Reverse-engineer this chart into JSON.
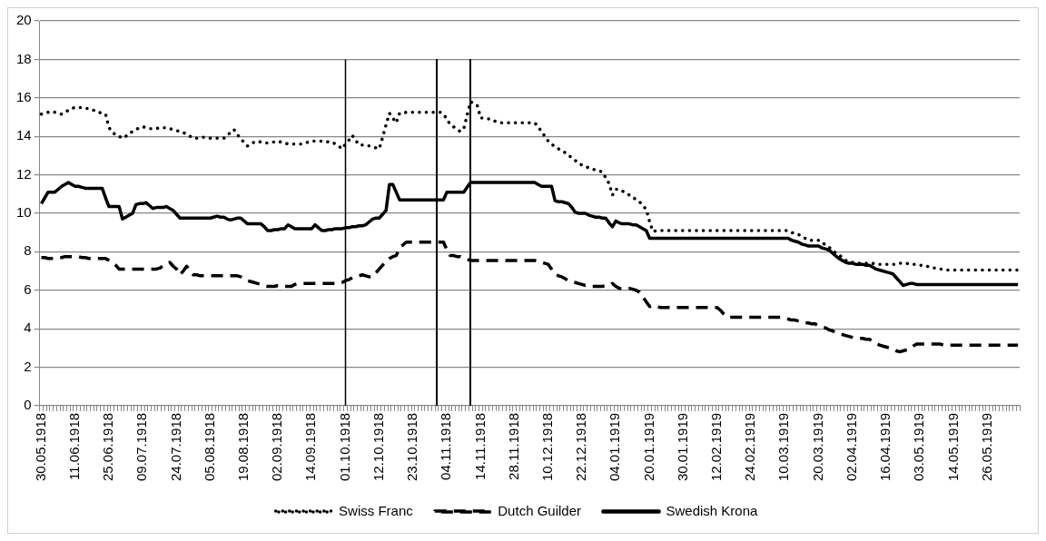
{
  "chart_data": {
    "type": "line",
    "categories": [
      "30.05.1918",
      null,
      null,
      null,
      null,
      null,
      null,
      null,
      null,
      null,
      "11.06.1918",
      null,
      null,
      null,
      null,
      null,
      null,
      null,
      null,
      null,
      "25.06.1918",
      null,
      null,
      null,
      null,
      null,
      null,
      null,
      null,
      null,
      "09.07.1918",
      null,
      null,
      null,
      null,
      null,
      null,
      null,
      null,
      null,
      "24.07.1918",
      null,
      null,
      null,
      null,
      null,
      null,
      null,
      null,
      null,
      "05.08.1918",
      null,
      null,
      null,
      null,
      null,
      null,
      null,
      null,
      null,
      "19.08.1918",
      null,
      null,
      null,
      null,
      null,
      null,
      null,
      null,
      null,
      "02.09.1918",
      null,
      null,
      null,
      null,
      null,
      null,
      null,
      null,
      null,
      "14.09.1918",
      null,
      null,
      null,
      null,
      null,
      null,
      null,
      null,
      null,
      "01.10.1918",
      null,
      null,
      null,
      null,
      null,
      null,
      null,
      null,
      null,
      "12.10.1918",
      null,
      null,
      null,
      null,
      null,
      null,
      null,
      null,
      null,
      "23.10.1918",
      null,
      null,
      null,
      null,
      null,
      null,
      null,
      null,
      null,
      "04.11.1918",
      null,
      null,
      null,
      null,
      null,
      null,
      null,
      null,
      null,
      "14.11.1918",
      null,
      null,
      null,
      null,
      null,
      null,
      null,
      null,
      null,
      "28.11.1918",
      null,
      null,
      null,
      null,
      null,
      null,
      null,
      null,
      null,
      "10.12.1918",
      null,
      null,
      null,
      null,
      null,
      null,
      null,
      null,
      null,
      "22.12.1918",
      null,
      null,
      null,
      null,
      null,
      null,
      null,
      null,
      null,
      "04.01.1919",
      null,
      null,
      null,
      null,
      null,
      null,
      null,
      null,
      null,
      "20.01.1919",
      null,
      null,
      null,
      null,
      null,
      null,
      null,
      null,
      null,
      "30.01.1919",
      null,
      null,
      null,
      null,
      null,
      null,
      null,
      null,
      null,
      "12.02.1919",
      null,
      null,
      null,
      null,
      null,
      null,
      null,
      null,
      null,
      "24.02.1919",
      null,
      null,
      null,
      null,
      null,
      null,
      null,
      null,
      null,
      "10.03.1919",
      null,
      null,
      null,
      null,
      null,
      null,
      null,
      null,
      null,
      "20.03.1919",
      null,
      null,
      null,
      null,
      null,
      null,
      null,
      null,
      null,
      "02.04.1919",
      null,
      null,
      null,
      null,
      null,
      null,
      null,
      null,
      null,
      "16.04.1919",
      null,
      null,
      null,
      null,
      null,
      null,
      null,
      null,
      null,
      "03.05.1919",
      null,
      null,
      null,
      null,
      null,
      null,
      null,
      null,
      null,
      "14.05.1919",
      null,
      null,
      null,
      null,
      null,
      null,
      null,
      null,
      null,
      "26.05.1919",
      null,
      null,
      null,
      null,
      null,
      null,
      null,
      null,
      null
    ],
    "series": [
      {
        "name": "Swiss Franc",
        "color": "#000000",
        "line_style": "dotted",
        "values": [
          15.15,
          15.2,
          15.25,
          15.3,
          15.25,
          15.2,
          15.15,
          15.25,
          15.35,
          15.45,
          15.5,
          15.5,
          15.5,
          15.45,
          15.45,
          15.4,
          15.3,
          15.25,
          15.2,
          15.15,
          14.45,
          14.25,
          14.05,
          14.0,
          13.9,
          14.0,
          14.15,
          14.25,
          14.35,
          14.45,
          14.5,
          14.45,
          14.4,
          14.4,
          14.4,
          14.45,
          14.45,
          14.45,
          14.4,
          14.35,
          14.3,
          14.25,
          14.2,
          14.1,
          14.0,
          13.9,
          13.9,
          13.95,
          13.95,
          13.95,
          13.9,
          13.9,
          13.9,
          13.9,
          13.9,
          14.05,
          14.2,
          14.35,
          14.1,
          13.85,
          13.7,
          13.5,
          13.6,
          13.7,
          13.75,
          13.7,
          13.65,
          13.65,
          13.7,
          13.7,
          13.75,
          13.7,
          13.65,
          13.6,
          13.6,
          13.6,
          13.6,
          13.6,
          13.65,
          13.7,
          13.75,
          13.75,
          13.75,
          13.75,
          13.75,
          13.7,
          13.7,
          13.6,
          13.5,
          13.35,
          13.6,
          13.8,
          14.05,
          13.8,
          13.55,
          13.55,
          13.5,
          13.5,
          13.45,
          13.4,
          13.35,
          13.95,
          14.6,
          15.2,
          14.95,
          14.7,
          15.2,
          15.2,
          15.25,
          15.25,
          15.25,
          15.25,
          15.25,
          15.25,
          15.25,
          15.25,
          15.25,
          15.25,
          15.25,
          15.15,
          14.9,
          14.6,
          14.5,
          14.35,
          14.25,
          14.4,
          15.1,
          15.8,
          15.7,
          15.6,
          14.95,
          14.95,
          14.9,
          14.9,
          14.8,
          14.75,
          14.7,
          14.7,
          14.7,
          14.7,
          14.7,
          14.7,
          14.7,
          14.7,
          14.7,
          14.7,
          14.7,
          14.5,
          14.25,
          14.0,
          13.75,
          13.6,
          13.45,
          13.35,
          13.25,
          13.15,
          13.0,
          12.9,
          12.75,
          12.6,
          12.5,
          12.45,
          12.35,
          12.3,
          12.25,
          12.2,
          12.15,
          11.85,
          11.55,
          10.95,
          11.25,
          11.25,
          11.15,
          11.05,
          10.95,
          10.85,
          10.7,
          10.6,
          10.4,
          10.2,
          9.55,
          9.05,
          9.1,
          9.1,
          9.1,
          9.1,
          9.1,
          9.1,
          9.1,
          9.1,
          9.1,
          9.1,
          9.1,
          9.1,
          9.1,
          9.1,
          9.1,
          9.1,
          9.1,
          9.1,
          9.1,
          9.1,
          9.1,
          9.1,
          9.1,
          9.1,
          9.1,
          9.1,
          9.1,
          9.1,
          9.1,
          9.1,
          9.1,
          9.1,
          9.1,
          9.1,
          9.1,
          9.1,
          9.1,
          9.1,
          9.1,
          9.1,
          9.0,
          8.95,
          8.9,
          8.8,
          8.7,
          8.6,
          8.6,
          8.6,
          8.6,
          8.5,
          8.35,
          8.25,
          8.1,
          7.95,
          7.85,
          7.7,
          7.55,
          7.5,
          7.45,
          7.4,
          7.4,
          7.4,
          7.4,
          7.4,
          7.4,
          7.35,
          7.35,
          7.35,
          7.35,
          7.35,
          7.35,
          7.35,
          7.4,
          7.4,
          7.4,
          7.35,
          7.35,
          7.35,
          7.3,
          7.3,
          7.25,
          7.2,
          7.15,
          7.15,
          7.1,
          7.1,
          7.05,
          7.05,
          7.05,
          7.05,
          7.05,
          7.05,
          7.05,
          7.05,
          7.05,
          7.05,
          7.05,
          7.05,
          7.05,
          7.05,
          7.05,
          7.05,
          7.05,
          7.05,
          7.05,
          7.05,
          7.05,
          7.05
        ]
      },
      {
        "name": "Dutch Guilder",
        "color": "#000000",
        "line_style": "dashed",
        "values": [
          7.7,
          7.7,
          7.65,
          7.65,
          7.65,
          7.7,
          7.7,
          7.75,
          7.75,
          7.75,
          7.75,
          7.75,
          7.7,
          7.7,
          7.65,
          7.65,
          7.65,
          7.65,
          7.65,
          7.65,
          7.55,
          7.45,
          7.3,
          7.1,
          7.1,
          7.1,
          7.1,
          7.1,
          7.1,
          7.1,
          7.1,
          7.1,
          7.1,
          7.1,
          7.1,
          7.15,
          7.25,
          7.35,
          7.45,
          7.25,
          7.1,
          6.8,
          7.0,
          7.25,
          7.0,
          6.8,
          6.8,
          6.75,
          6.75,
          6.75,
          6.75,
          6.75,
          6.75,
          6.75,
          6.75,
          6.75,
          6.75,
          6.75,
          6.75,
          6.7,
          6.6,
          6.5,
          6.45,
          6.4,
          6.35,
          6.3,
          6.25,
          6.2,
          6.2,
          6.2,
          6.25,
          6.25,
          6.2,
          6.2,
          6.2,
          6.3,
          6.35,
          6.35,
          6.35,
          6.35,
          6.35,
          6.35,
          6.35,
          6.35,
          6.35,
          6.35,
          6.35,
          6.35,
          6.35,
          6.4,
          6.5,
          6.55,
          6.65,
          6.7,
          6.75,
          6.8,
          6.75,
          6.7,
          6.7,
          6.9,
          7.1,
          7.3,
          7.5,
          7.65,
          7.75,
          7.8,
          8.2,
          8.35,
          8.5,
          8.5,
          8.5,
          8.5,
          8.5,
          8.5,
          8.5,
          8.5,
          8.5,
          8.5,
          8.5,
          8.5,
          8.1,
          7.8,
          7.8,
          7.75,
          7.75,
          7.65,
          7.6,
          7.55,
          7.55,
          7.55,
          7.55,
          7.55,
          7.55,
          7.55,
          7.55,
          7.55,
          7.55,
          7.55,
          7.55,
          7.55,
          7.55,
          7.55,
          7.55,
          7.55,
          7.55,
          7.55,
          7.55,
          7.5,
          7.45,
          7.4,
          7.35,
          7.1,
          6.85,
          6.75,
          6.7,
          6.6,
          6.5,
          6.45,
          6.4,
          6.35,
          6.3,
          6.25,
          6.25,
          6.2,
          6.2,
          6.2,
          6.2,
          6.25,
          6.25,
          6.35,
          6.2,
          6.1,
          6.1,
          6.1,
          6.1,
          6.05,
          6.0,
          5.9,
          5.65,
          5.4,
          5.15,
          5.2,
          5.2,
          5.1,
          5.1,
          5.1,
          5.1,
          5.1,
          5.1,
          5.1,
          5.1,
          5.1,
          5.1,
          5.1,
          5.1,
          5.1,
          5.1,
          5.1,
          5.1,
          5.1,
          5.1,
          4.95,
          4.75,
          4.6,
          4.6,
          4.6,
          4.6,
          4.6,
          4.6,
          4.6,
          4.6,
          4.6,
          4.6,
          4.6,
          4.6,
          4.6,
          4.6,
          4.6,
          4.6,
          4.6,
          4.55,
          4.5,
          4.45,
          4.45,
          4.4,
          4.35,
          4.3,
          4.3,
          4.25,
          4.25,
          4.15,
          4.1,
          4.05,
          3.95,
          3.9,
          3.8,
          3.75,
          3.7,
          3.65,
          3.6,
          3.55,
          3.5,
          3.5,
          3.5,
          3.45,
          3.45,
          3.35,
          3.25,
          3.15,
          3.1,
          3.05,
          3.0,
          2.95,
          2.85,
          2.8,
          2.85,
          2.9,
          2.95,
          3.1,
          3.2,
          3.2,
          3.2,
          3.2,
          3.2,
          3.2,
          3.2,
          3.2,
          3.15,
          3.15,
          3.15,
          3.15,
          3.15,
          3.15,
          3.15,
          3.15,
          3.15,
          3.15,
          3.15,
          3.15,
          3.15,
          3.15,
          3.15,
          3.15,
          3.15,
          3.15,
          3.15,
          3.15,
          3.15,
          3.15,
          3.15
        ]
      },
      {
        "name": "Swedish Krona",
        "color": "#000000",
        "line_style": "solid",
        "values": [
          10.5,
          10.8,
          11.1,
          11.1,
          11.1,
          11.25,
          11.4,
          11.5,
          11.6,
          11.5,
          11.4,
          11.4,
          11.35,
          11.3,
          11.3,
          11.3,
          11.3,
          11.3,
          11.3,
          10.8,
          10.35,
          10.35,
          10.35,
          10.35,
          9.7,
          9.8,
          9.9,
          10.0,
          10.45,
          10.5,
          10.5,
          10.55,
          10.4,
          10.25,
          10.3,
          10.3,
          10.3,
          10.35,
          10.25,
          10.15,
          9.95,
          9.75,
          9.75,
          9.75,
          9.75,
          9.75,
          9.75,
          9.75,
          9.75,
          9.75,
          9.75,
          9.8,
          9.85,
          9.8,
          9.8,
          9.7,
          9.65,
          9.7,
          9.75,
          9.75,
          9.6,
          9.45,
          9.45,
          9.45,
          9.45,
          9.45,
          9.3,
          9.1,
          9.1,
          9.15,
          9.15,
          9.2,
          9.2,
          9.4,
          9.3,
          9.2,
          9.2,
          9.2,
          9.2,
          9.2,
          9.2,
          9.4,
          9.25,
          9.1,
          9.1,
          9.15,
          9.15,
          9.2,
          9.2,
          9.2,
          9.25,
          9.25,
          9.3,
          9.3,
          9.35,
          9.35,
          9.4,
          9.55,
          9.7,
          9.75,
          9.75,
          9.95,
          10.15,
          11.5,
          11.5,
          11.1,
          10.7,
          10.7,
          10.7,
          10.7,
          10.7,
          10.7,
          10.7,
          10.7,
          10.7,
          10.7,
          10.7,
          10.7,
          10.7,
          10.7,
          11.1,
          11.1,
          11.1,
          11.1,
          11.1,
          11.1,
          11.35,
          11.6,
          11.6,
          11.6,
          11.6,
          11.6,
          11.6,
          11.6,
          11.6,
          11.6,
          11.6,
          11.6,
          11.6,
          11.6,
          11.6,
          11.6,
          11.6,
          11.6,
          11.6,
          11.6,
          11.6,
          11.5,
          11.4,
          11.4,
          11.4,
          11.4,
          10.65,
          10.6,
          10.6,
          10.55,
          10.5,
          10.3,
          10.05,
          10.0,
          10.0,
          10.0,
          9.9,
          9.85,
          9.8,
          9.8,
          9.75,
          9.75,
          9.5,
          9.3,
          9.6,
          9.5,
          9.45,
          9.45,
          9.45,
          9.4,
          9.4,
          9.3,
          9.2,
          9.1,
          8.7,
          8.7,
          8.7,
          8.7,
          8.7,
          8.7,
          8.7,
          8.7,
          8.7,
          8.7,
          8.7,
          8.7,
          8.7,
          8.7,
          8.7,
          8.7,
          8.7,
          8.7,
          8.7,
          8.7,
          8.7,
          8.7,
          8.7,
          8.7,
          8.7,
          8.7,
          8.7,
          8.7,
          8.7,
          8.7,
          8.7,
          8.7,
          8.7,
          8.7,
          8.7,
          8.7,
          8.7,
          8.7,
          8.7,
          8.7,
          8.7,
          8.7,
          8.6,
          8.55,
          8.5,
          8.4,
          8.35,
          8.3,
          8.3,
          8.3,
          8.3,
          8.2,
          8.15,
          8.1,
          7.95,
          7.8,
          7.65,
          7.55,
          7.45,
          7.4,
          7.4,
          7.35,
          7.35,
          7.35,
          7.3,
          7.3,
          7.2,
          7.1,
          7.05,
          7.0,
          6.95,
          6.9,
          6.85,
          6.65,
          6.45,
          6.25,
          6.3,
          6.35,
          6.35,
          6.3,
          6.3,
          6.3,
          6.3,
          6.3,
          6.3,
          6.3,
          6.3,
          6.3,
          6.3,
          6.3,
          6.3,
          6.3,
          6.3,
          6.3,
          6.3,
          6.3,
          6.3,
          6.3,
          6.3,
          6.3,
          6.3,
          6.3,
          6.3,
          6.3,
          6.3,
          6.3,
          6.3,
          6.3,
          6.3,
          6.3
        ]
      }
    ],
    "ylim": [
      0,
      20
    ],
    "yticks": [
      0,
      2,
      4,
      6,
      8,
      10,
      12,
      14,
      16,
      18,
      20
    ],
    "ref_lines": [
      {
        "axis": "x",
        "value": "01.10.1918",
        "color": "#000000"
      }
    ],
    "grid": "y",
    "legend": "bottom"
  }
}
